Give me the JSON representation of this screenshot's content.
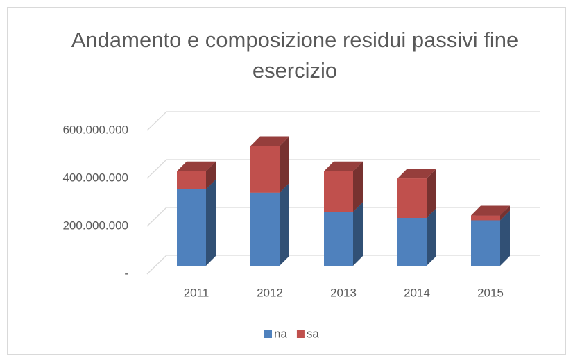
{
  "chart_data": {
    "type": "bar3d_stacked",
    "title": "Andamento e composizione residui passivi fine esercizio",
    "categories": [
      "2011",
      "2012",
      "2013",
      "2014",
      "2015"
    ],
    "series": [
      {
        "name": "na",
        "color": "#4f81bd",
        "values": [
          320000000,
          305000000,
          225000000,
          200000000,
          190000000
        ]
      },
      {
        "name": "sa",
        "color": "#c0504d",
        "values": [
          75000000,
          195000000,
          170000000,
          165000000,
          20000000
        ]
      }
    ],
    "ylim": [
      0,
      600000000
    ],
    "yticks": [
      {
        "value": 0,
        "label": "-"
      },
      {
        "value": 200000000,
        "label": "200.000.000"
      },
      {
        "value": 400000000,
        "label": "400.000.000"
      },
      {
        "value": 600000000,
        "label": "600.000.000"
      }
    ],
    "grid": true,
    "legend": "bottom"
  }
}
